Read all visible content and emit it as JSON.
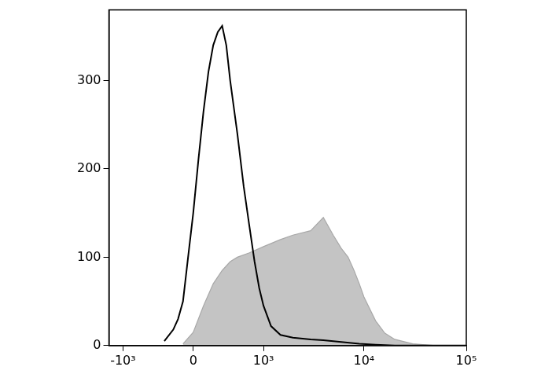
{
  "chart_data": {
    "type": "line",
    "xlim": [
      -1400,
      100000
    ],
    "xticks": [
      {
        "value": -1000,
        "label": "-10³"
      },
      0,
      {
        "value": 1000,
        "label": "10³"
      },
      {
        "value": 10000,
        "label": "10⁴"
      },
      {
        "value": 100000,
        "label": "10⁵"
      }
    ],
    "ylim": [
      0,
      380
    ],
    "yticks": [
      0,
      100,
      200,
      300
    ],
    "grid": false,
    "series": [
      {
        "type": "area",
        "color": "#c4c4c4",
        "x": [
          -100,
          0,
          100,
          200,
          300,
          400,
          500,
          700,
          1000,
          1500,
          2000,
          3000,
          4000,
          5000,
          6000,
          7000,
          8000,
          9000,
          10000,
          13000,
          16000,
          20000,
          30000,
          50000
        ],
        "values": [
          2,
          15,
          45,
          70,
          85,
          95,
          100,
          105,
          112,
          120,
          125,
          130,
          145,
          125,
          110,
          100,
          85,
          70,
          55,
          28,
          14,
          7,
          2,
          0
        ]
      },
      {
        "type": "line",
        "color": "#000000",
        "x": [
          -300,
          -200,
          -150,
          -100,
          -50,
          0,
          50,
          100,
          150,
          200,
          250,
          300,
          350,
          400,
          500,
          600,
          700,
          800,
          900,
          1000,
          1200,
          1500,
          2000,
          3000,
          4000,
          6000,
          9000,
          13000,
          20000,
          100000
        ],
        "values": [
          5,
          18,
          30,
          50,
          100,
          150,
          210,
          265,
          310,
          340,
          355,
          362,
          340,
          300,
          240,
          180,
          135,
          95,
          65,
          45,
          22,
          12,
          9,
          7,
          6,
          4,
          2,
          1,
          0,
          0
        ]
      }
    ]
  }
}
